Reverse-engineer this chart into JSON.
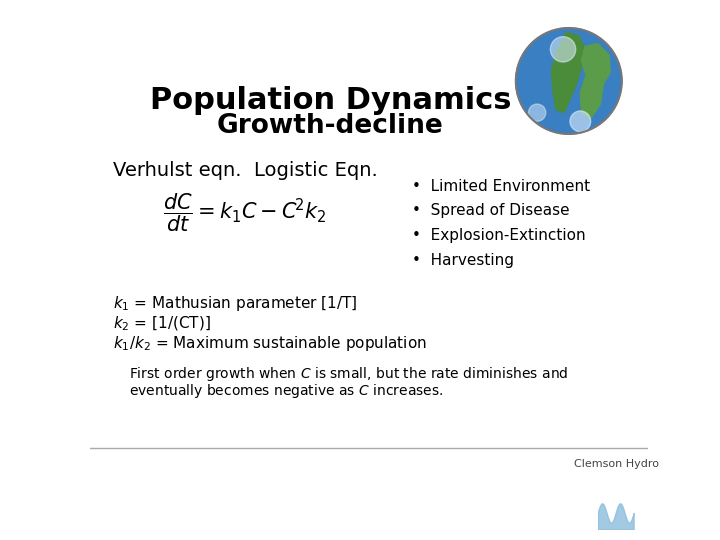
{
  "title_line1": "Population Dynamics",
  "title_line2": "Growth-decline",
  "subtitle_label": "Verhulst eqn.  Logistic Eqn.",
  "bullet_items": [
    "Limited Environment",
    "Spread of Disease",
    "Explosion-Extinction",
    "Harvesting"
  ],
  "param_lines": [
    "$k_1$ = Mathusian parameter [1/T]",
    "$k_2$ = [1/(CT)]",
    "$k_1/k_2$ = Maximum sustainable population"
  ],
  "footer_line1": "First order growth when $C$ is small, but the rate diminishes and",
  "footer_line2": "eventually becomes negative as $C$ increases.",
  "footer_label": "Clemson Hydro",
  "bg_color": "#ffffff",
  "text_color": "#000000",
  "title_fontsize": 22,
  "title2_fontsize": 19,
  "subtitle_fontsize": 14,
  "bullet_fontsize": 11,
  "param_fontsize": 11,
  "footer_fontsize": 10,
  "eqn_fontsize": 15,
  "separator_color": "#aaaaaa",
  "globe_ocean_color": "#3a7fc1",
  "globe_land_color1": "#4a8c3a",
  "globe_land_color2": "#5a9c4a",
  "globe_cloud_color": "#ddeeff",
  "globe_border_color": "#777777"
}
